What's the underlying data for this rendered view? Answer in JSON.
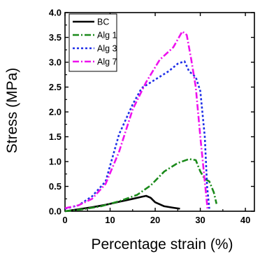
{
  "chart_data": {
    "type": "line",
    "title": "",
    "xlabel": "Percentage strain (%)",
    "ylabel": "Stress (MPa)",
    "xlim": [
      0,
      42
    ],
    "ylim": [
      0,
      4.0
    ],
    "xticks": [
      "0",
      "10",
      "20",
      "30",
      "40"
    ],
    "yticks": [
      "0.0",
      "0.5",
      "1.0",
      "1.5",
      "2.0",
      "2.5",
      "3.0",
      "3.5",
      "4.0"
    ],
    "legend_position": "top-left",
    "grid": false,
    "series": [
      {
        "name": "BC",
        "color": "#000000",
        "dash": "solid",
        "x": [
          0,
          3,
          6,
          9,
          12,
          15,
          17,
          18,
          19,
          20,
          22,
          24,
          25.5
        ],
        "y": [
          0.0,
          0.04,
          0.08,
          0.13,
          0.19,
          0.25,
          0.29,
          0.31,
          0.27,
          0.18,
          0.1,
          0.07,
          0.05
        ]
      },
      {
        "name": "Alg 1",
        "color": "#1b8a1b",
        "dash": "dashdot",
        "x": [
          0,
          4,
          8,
          12,
          16,
          19,
          22,
          25,
          27.5,
          29,
          30,
          31,
          32,
          33,
          33.6
        ],
        "y": [
          0.0,
          0.04,
          0.1,
          0.2,
          0.33,
          0.52,
          0.8,
          0.97,
          1.05,
          1.03,
          0.8,
          0.65,
          0.6,
          0.38,
          0.15
        ]
      },
      {
        "name": "Alg 3",
        "color": "#1f2fe8",
        "dash": "dotted",
        "x": [
          0,
          3,
          6,
          9,
          12,
          15,
          17,
          20,
          23,
          25,
          26.5,
          27.5,
          29,
          30,
          31,
          31.5,
          32
        ],
        "y": [
          0.05,
          0.12,
          0.3,
          0.6,
          1.55,
          2.15,
          2.48,
          2.65,
          2.82,
          2.97,
          3.02,
          2.82,
          2.7,
          2.42,
          1.5,
          0.5,
          0.05
        ]
      },
      {
        "name": "Alg 7",
        "color": "#ee11ee",
        "dash": "dashdot",
        "x": [
          0,
          3,
          6,
          9,
          12,
          15,
          18,
          21,
          24,
          26,
          27,
          28,
          29,
          30,
          31,
          31.6
        ],
        "y": [
          0.06,
          0.12,
          0.25,
          0.55,
          1.2,
          2.05,
          2.6,
          3.05,
          3.3,
          3.62,
          3.55,
          3.05,
          2.5,
          1.5,
          0.6,
          0.05
        ]
      }
    ]
  }
}
